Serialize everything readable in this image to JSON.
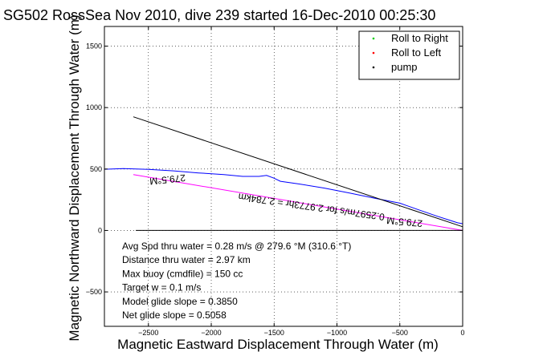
{
  "chart_data": {
    "type": "line",
    "title": "SG502 RossSea Nov 2010, dive 239 started 16-Dec-2010 00:25:30",
    "xlabel": "Magnetic Eastward Displacement Through Water (m)",
    "ylabel": "Magnetic Northward Displacement Through Water (m)",
    "xlim": [
      -2850,
      0
    ],
    "ylim": [
      -780,
      1660
    ],
    "xticks": [
      -2500,
      -2000,
      -1500,
      -1000,
      -500,
      0
    ],
    "yticks": [
      -500,
      0,
      500,
      1000,
      1500
    ],
    "xtick_labels": [
      "−2500",
      "−2000",
      "−1500",
      "−1000",
      "−500",
      "0"
    ],
    "ytick_labels": [
      "−500",
      "0",
      "500",
      "1000",
      "1500"
    ],
    "grid": true,
    "legend_position": "top-right",
    "legend": [
      {
        "label": "Roll to Right",
        "color": "#00cc00"
      },
      {
        "label": "Roll to Left",
        "color": "#ff0000"
      },
      {
        "label": "pump",
        "color": "#000000"
      }
    ],
    "series": [
      {
        "color": "#0000ff",
        "x": [
          -2850,
          -2700,
          -2500,
          -2300,
          -2100,
          -1900,
          -1750,
          -1620,
          -1560,
          -1500,
          -1450,
          -1300,
          -1100,
          -900,
          -700,
          -500,
          -350,
          -200,
          -100,
          -40,
          0
        ],
        "y": [
          498,
          503,
          497,
          485,
          468,
          455,
          440,
          440,
          448,
          425,
          400,
          378,
          345,
          305,
          262,
          222,
          168,
          115,
          82,
          62,
          55
        ]
      },
      {
        "color": "#ff00ff",
        "x": [
          -2620,
          0
        ],
        "y": [
          455,
          0
        ]
      },
      {
        "color": "#000000",
        "x": [
          -2620,
          0
        ],
        "y": [
          925,
          30
        ]
      },
      {
        "color": "#000000",
        "x": [
          -2600,
          0
        ],
        "y": [
          0,
          0
        ]
      }
    ],
    "annotations": [
      {
        "text": "279.5°M",
        "x": -2350,
        "y": 440,
        "rotate": 174
      },
      {
        "text": "279.5°M",
        "x": -460,
        "y": 95,
        "rotate": 185
      },
      {
        "text": "0.2597m/s for 2.9773hr = 2.784km",
        "x": -1200,
        "y": 218,
        "rotate": 188
      }
    ],
    "summary": [
      "Avg Spd thru water =  0.28 m/s @ 279.6   °M (310.6 °T)",
      "Distance thru water =  2.97 km",
      "Max buoy (cmdfile) = 150 cc",
      "Target w = 0.1 m/s",
      "Model glide slope = 0.3850",
      "Net glide slope = 0.5058"
    ]
  }
}
